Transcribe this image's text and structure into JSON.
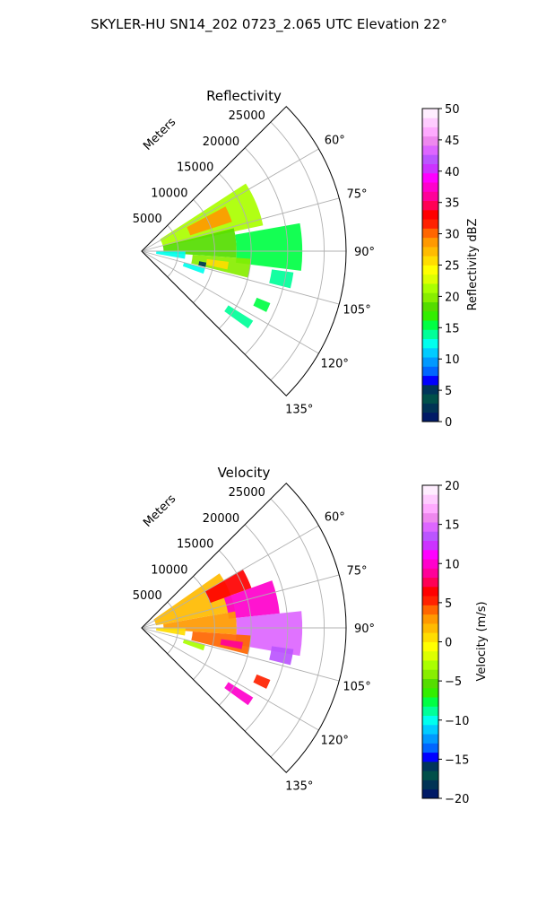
{
  "title": "SKYLER-HU  SN14_202  0723_2.065 UTC Elevation 22°",
  "chart_data": [
    {
      "type": "polar-wedge",
      "title": "Reflectivity",
      "range_label": "Meters",
      "range_ticks": [
        5000,
        10000,
        15000,
        20000,
        25000
      ],
      "range_tick_labels": [
        "5000",
        "10000",
        "15000",
        "20000",
        "25000"
      ],
      "max_range": 28000,
      "azimuth_ticks": [
        60,
        75,
        90,
        105,
        120,
        135
      ],
      "azimuth_tick_labels": [
        "60°",
        "75°",
        "90°",
        "105°",
        "120°",
        "135°"
      ],
      "azimuth_range": [
        45,
        135
      ],
      "grid": true,
      "colorbar": {
        "label": "Reflectivity dBZ",
        "vmin": 0,
        "vmax": 50,
        "ticks": [
          0,
          5,
          10,
          15,
          20,
          25,
          30,
          35,
          40,
          45,
          50
        ],
        "tick_labels": [
          "0",
          "5",
          "10",
          "15",
          "20",
          "25",
          "30",
          "35",
          "40",
          "45",
          "50"
        ],
        "colors": [
          "#001a66",
          "#003355",
          "#00504a",
          "#00355a",
          "#0000ff",
          "#0066ff",
          "#0099ff",
          "#00ccff",
          "#00ffee",
          "#00ff99",
          "#00ff44",
          "#33ee00",
          "#55dd00",
          "#88ee00",
          "#aaff00",
          "#ddff00",
          "#ffff00",
          "#ffdd00",
          "#ffbb00",
          "#ff9900",
          "#ff6600",
          "#ff2200",
          "#ff0000",
          "#ff0055",
          "#ff0099",
          "#ff00cc",
          "#ff00ff",
          "#cc33ff",
          "#bb55ff",
          "#dd66ff",
          "#ee88ee",
          "#ffaaff",
          "#ffccff",
          "#ffeeff"
        ]
      },
      "echo_regions": [
        {
          "az": [
            57,
            78
          ],
          "r": [
            3000,
            17000
          ],
          "value": 22
        },
        {
          "az": [
            62,
            72
          ],
          "r": [
            7000,
            13000
          ],
          "value": 28
        },
        {
          "az": [
            76,
            94
          ],
          "r": [
            3000,
            13000
          ],
          "value": 18
        },
        {
          "az": [
            80,
            97
          ],
          "r": [
            13000,
            22000
          ],
          "value": 16
        },
        {
          "az": [
            94,
            104
          ],
          "r": [
            7000,
            15000
          ],
          "value": 20
        },
        {
          "az": [
            97,
            102
          ],
          "r": [
            9000,
            12000
          ],
          "value": 26
        },
        {
          "az": [
            90,
            100
          ],
          "r": [
            2000,
            6000
          ],
          "value": 12
        },
        {
          "az": [
            105,
            110
          ],
          "r": [
            6000,
            9000
          ],
          "value": 12
        },
        {
          "az": [
            98,
            104
          ],
          "r": [
            18000,
            21000
          ],
          "value": 14
        },
        {
          "az": [
            112,
            116
          ],
          "r": [
            17000,
            19000
          ],
          "value": 15
        },
        {
          "az": [
            122,
            126
          ],
          "r": [
            14000,
            18000
          ],
          "value": 14
        },
        {
          "az": [
            100,
            104
          ],
          "r": [
            8000,
            9000
          ],
          "value": 5
        }
      ]
    },
    {
      "type": "polar-wedge",
      "title": "Velocity",
      "range_label": "Meters",
      "range_ticks": [
        5000,
        10000,
        15000,
        20000,
        25000
      ],
      "range_tick_labels": [
        "5000",
        "10000",
        "15000",
        "20000",
        "25000"
      ],
      "max_range": 28000,
      "azimuth_ticks": [
        60,
        75,
        90,
        105,
        120,
        135
      ],
      "azimuth_tick_labels": [
        "60°",
        "75°",
        "90°",
        "105°",
        "120°",
        "135°"
      ],
      "azimuth_range": [
        45,
        135
      ],
      "grid": true,
      "colorbar": {
        "label": "Velocity (m/s)",
        "vmin": -20,
        "vmax": 20,
        "ticks": [
          -20,
          -15,
          -10,
          -5,
          0,
          5,
          10,
          15,
          20
        ],
        "tick_labels": [
          "−20",
          "−15",
          "−10",
          "−5",
          "0",
          "5",
          "10",
          "15",
          "20"
        ],
        "colors": [
          "#001a66",
          "#003355",
          "#00504a",
          "#00355a",
          "#0000ff",
          "#0066ff",
          "#0099ff",
          "#00ccff",
          "#00ffee",
          "#00ff99",
          "#00ff44",
          "#33ee00",
          "#55dd00",
          "#88ee00",
          "#aaff00",
          "#ddff00",
          "#ffff00",
          "#ffdd00",
          "#ffbb00",
          "#ff9900",
          "#ff6600",
          "#ff2200",
          "#ff0000",
          "#ff0055",
          "#ff0099",
          "#ff00cc",
          "#ff00ff",
          "#cc33ff",
          "#bb55ff",
          "#dd66ff",
          "#ee88ee",
          "#ffaaff",
          "#ffccff",
          "#ffeeff"
        ]
      },
      "echo_regions": [
        {
          "az": [
            55,
            80
          ],
          "r": [
            2000,
            13000
          ],
          "value": 2
        },
        {
          "az": [
            60,
            70
          ],
          "r": [
            10000,
            16000
          ],
          "value": 6
        },
        {
          "az": [
            70,
            84
          ],
          "r": [
            12000,
            19000
          ],
          "value": 10
        },
        {
          "az": [
            84,
            100
          ],
          "r": [
            13000,
            22000
          ],
          "value": 15
        },
        {
          "az": [
            80,
            94
          ],
          "r": [
            3000,
            13000
          ],
          "value": 3
        },
        {
          "az": [
            94,
            104
          ],
          "r": [
            7000,
            15000
          ],
          "value": 4
        },
        {
          "az": [
            98,
            102
          ],
          "r": [
            11000,
            14000
          ],
          "value": 9
        },
        {
          "az": [
            90,
            100
          ],
          "r": [
            2000,
            6000
          ],
          "value": 1
        },
        {
          "az": [
            105,
            110
          ],
          "r": [
            6000,
            9000
          ],
          "value": -3
        },
        {
          "az": [
            98,
            104
          ],
          "r": [
            18000,
            21000
          ],
          "value": 14
        },
        {
          "az": [
            112,
            116
          ],
          "r": [
            17000,
            19000
          ],
          "value": 5
        },
        {
          "az": [
            122,
            126
          ],
          "r": [
            14000,
            18000
          ],
          "value": 10
        }
      ]
    }
  ]
}
